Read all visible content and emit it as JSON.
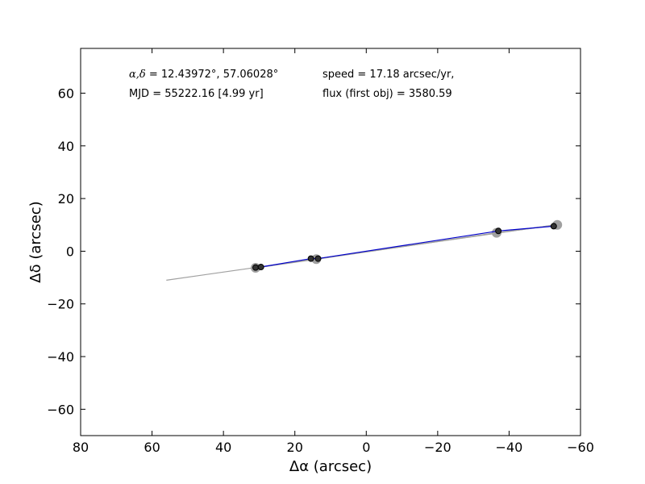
{
  "chart_data": {
    "type": "scatter",
    "xlabel": "Δα (arcsec)",
    "ylabel": "Δδ (arcsec)",
    "xlim": [
      80,
      -60
    ],
    "ylim": [
      -70,
      77
    ],
    "x_ticks": [
      80,
      60,
      40,
      20,
      0,
      -20,
      -40,
      -60
    ],
    "x_tick_labels": [
      "80",
      "60",
      "40",
      "20",
      "0",
      "−20",
      "−40",
      "−60"
    ],
    "y_ticks": [
      60,
      40,
      20,
      0,
      -20,
      -40,
      -60
    ],
    "y_tick_labels": [
      "60",
      "40",
      "20",
      "0",
      "−20",
      "−40",
      "−60"
    ],
    "grid": false,
    "annotations": {
      "coords_symbol": "α,δ",
      "coords_value": " = 12.43972°, 57.06028°",
      "mjd": "MJD = 55222.16 [4.99 yr]",
      "speed": "speed = 17.18 arcsec/yr,",
      "flux": "flux (first obj) = 3580.59"
    },
    "series": [
      {
        "role": "fit-line",
        "color": "#a0a0a0",
        "x": [
          56,
          -53
        ],
        "y": [
          -11,
          10
        ]
      },
      {
        "role": "predicted-positions",
        "color": "#a0a0a0",
        "x": [
          31,
          14,
          -36.5,
          -53.5
        ],
        "y": [
          -6.3,
          -3.0,
          7.0,
          10.0
        ]
      },
      {
        "role": "observed-track",
        "color": "#0000cc",
        "x": [
          31,
          29.5,
          15.5,
          13.5,
          -37,
          -52.5
        ],
        "y": [
          -6.2,
          -6.0,
          -2.8,
          -2.8,
          7.7,
          9.5
        ]
      }
    ]
  }
}
